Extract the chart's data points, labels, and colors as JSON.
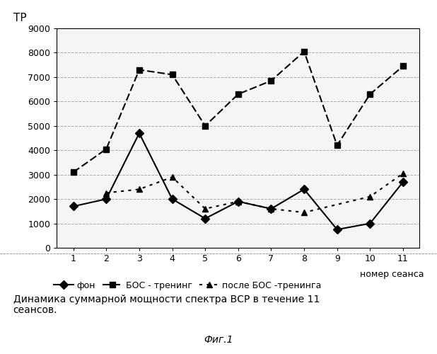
{
  "x": [
    1,
    2,
    3,
    4,
    5,
    6,
    7,
    8,
    9,
    10,
    11
  ],
  "fon": [
    1700,
    2000,
    4700,
    2000,
    1200,
    1900,
    1600,
    2400,
    750,
    1000,
    2700
  ],
  "bos_trening": [
    3100,
    4050,
    7300,
    7100,
    5000,
    6300,
    6850,
    8050,
    4200,
    6300,
    7450
  ],
  "posle_bos": [
    null,
    2250,
    2400,
    2900,
    1600,
    1900,
    1600,
    1450,
    null,
    2100,
    3050
  ],
  "tp_label": "ТР",
  "xlabel_text": "номер сеанса",
  "ylim": [
    0,
    9000
  ],
  "yticks": [
    0,
    1000,
    2000,
    3000,
    4000,
    5000,
    6000,
    7000,
    8000,
    9000
  ],
  "legend_fon": "фон",
  "legend_bos": "БОС - тренинг",
  "legend_posle": "после БОС -тренинга",
  "caption_line1": "Динамика суммарной мощности спектра ВСР в течение 11",
  "caption_line2": "сеансов.",
  "fig_label": "Фиг.1",
  "bg_color": "#f5f5f5",
  "grid_color": "#999999",
  "line_color": "#000000"
}
